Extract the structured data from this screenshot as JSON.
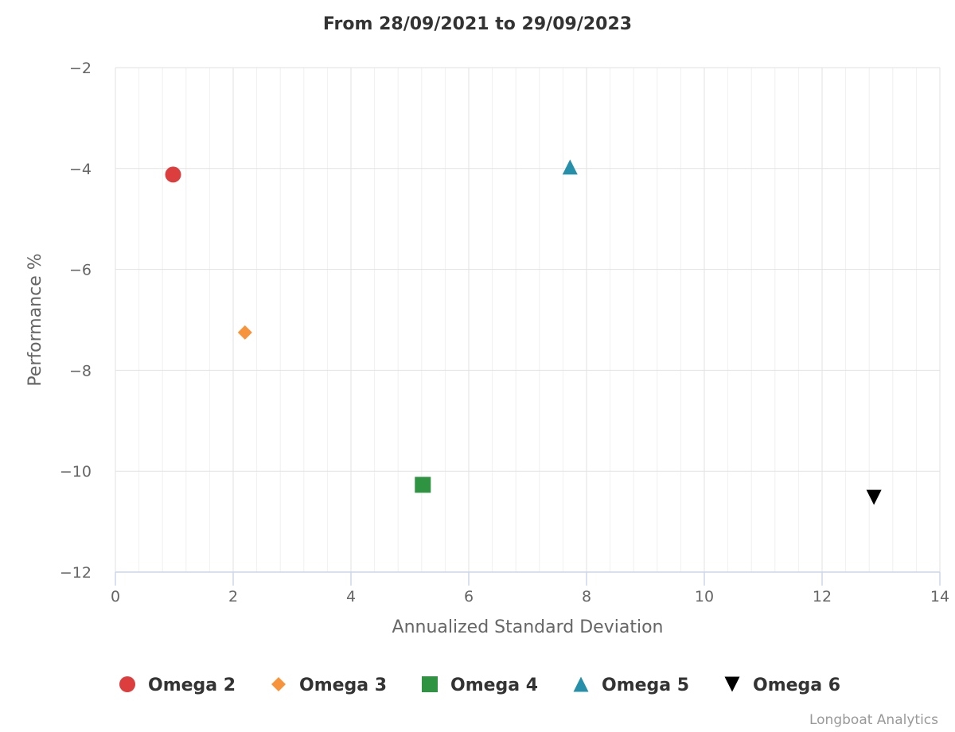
{
  "chart_data": {
    "type": "scatter",
    "title": "From 28/09/2021 to 29/09/2023",
    "xlabel": "Annualized Standard Deviation",
    "ylabel": "Performance %",
    "xlim": [
      0,
      14
    ],
    "ylim": [
      -12,
      -2
    ],
    "x_ticks": [
      0,
      2,
      4,
      6,
      8,
      10,
      12,
      14
    ],
    "x_tick_labels": [
      "0",
      "2",
      "4",
      "6",
      "8",
      "10",
      "12",
      "14"
    ],
    "y_ticks": [
      -2,
      -4,
      -6,
      -8,
      -10,
      -12
    ],
    "y_tick_labels": [
      "−2",
      "−4",
      "−6",
      "−8",
      "−10",
      "−12"
    ],
    "grid": true,
    "legend_position": "bottom",
    "series": [
      {
        "name": "Omega 2",
        "color": "#dc3d3d",
        "marker": "circle",
        "x": 0.98,
        "y": -4.12
      },
      {
        "name": "Omega 3",
        "color": "#f7943b",
        "marker": "diamond",
        "x": 2.2,
        "y": -7.25
      },
      {
        "name": "Omega 4",
        "color": "#2e9442",
        "marker": "square",
        "x": 5.22,
        "y": -10.27
      },
      {
        "name": "Omega 5",
        "color": "#2690aa",
        "marker": "triangle",
        "x": 7.72,
        "y": -3.97
      },
      {
        "name": "Omega 6",
        "color": "#000000",
        "marker": "triangle-down",
        "x": 12.88,
        "y": -10.52
      }
    ]
  },
  "credits": "Longboat Analytics"
}
